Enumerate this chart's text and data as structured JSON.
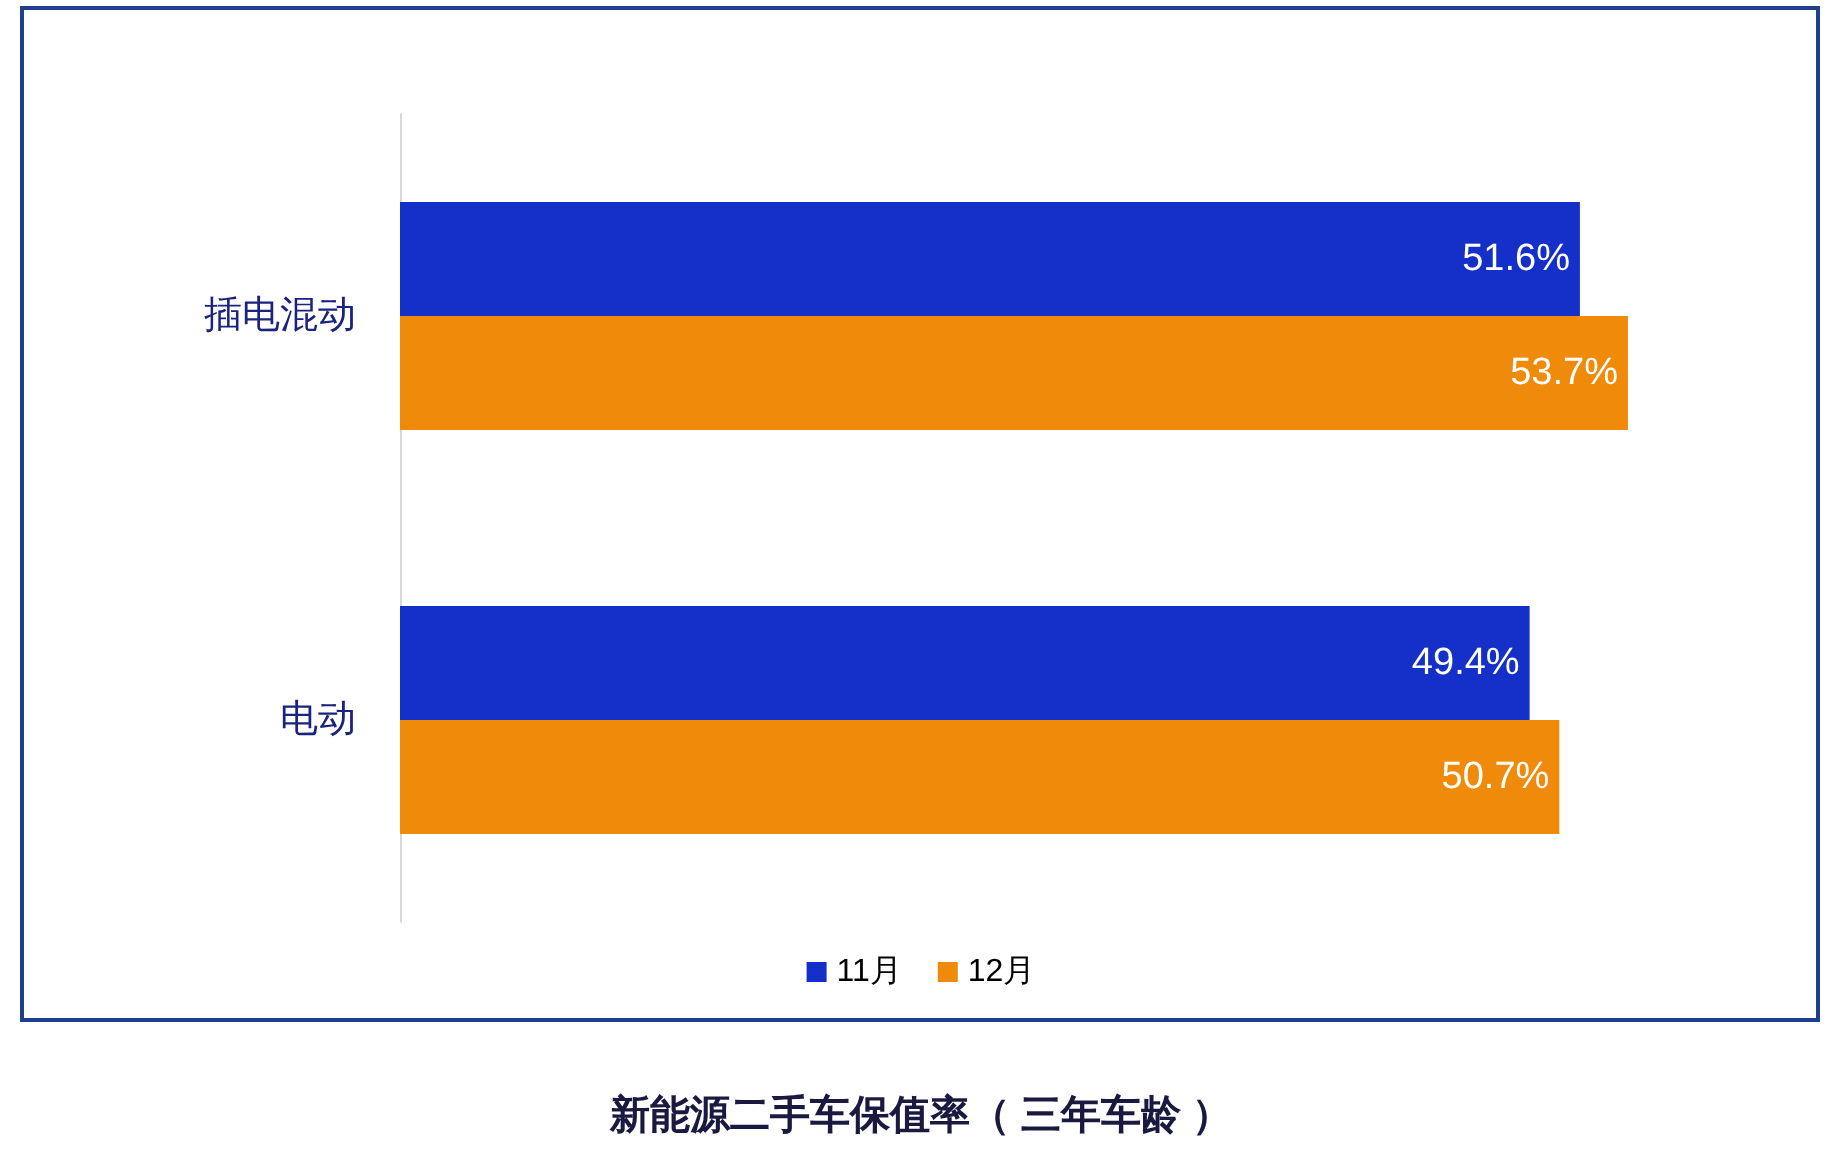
{
  "chart_data": {
    "type": "bar",
    "orientation": "horizontal",
    "title": "新能源二手车保值率（ 三年车龄 ）",
    "categories": [
      "插电混动",
      "电动"
    ],
    "series": [
      {
        "name": "11月",
        "color": "#1530c8",
        "values": [
          51.6,
          49.4
        ],
        "value_labels": [
          "51.6%",
          "49.4%"
        ]
      },
      {
        "name": "12月",
        "color": "#f08a0a",
        "values": [
          53.7,
          50.7
        ],
        "value_labels": [
          "53.7%",
          "50.7%"
        ]
      }
    ],
    "grid": false,
    "legend": "bottom",
    "tick_labels": "y"
  }
}
